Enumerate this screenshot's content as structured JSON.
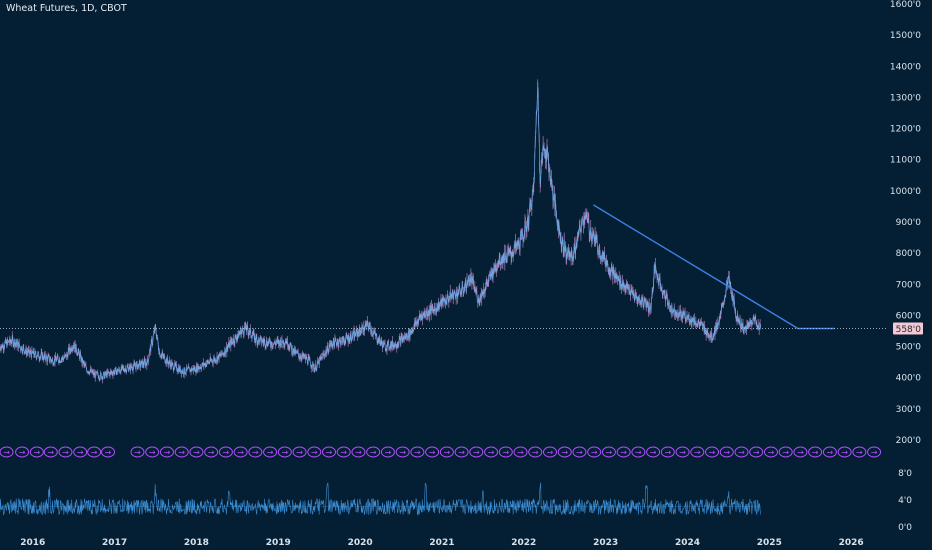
{
  "header": {
    "title": "Wheat Futures, 1D, CBOT"
  },
  "colors": {
    "background": "#041f33",
    "candle": "#c58fc9",
    "price_line": "#6aa8e8",
    "trendline": "#3f7fe0",
    "axis_text": "#d9e2ea",
    "last_price_bg": "#f2c9d4",
    "last_price_text": "#2a2a2a",
    "marker": "#b34dff",
    "volume": "#3d8fd6"
  },
  "chart_data": {
    "type": "line",
    "title": "Wheat Futures, 1D, CBOT",
    "xlabel": "",
    "ylabel": "",
    "x_ticks": [
      "2016",
      "2017",
      "2018",
      "2019",
      "2020",
      "2021",
      "2022",
      "2023",
      "2024",
      "2025",
      "2026"
    ],
    "xlim": [
      2015.6,
      2026.45
    ],
    "price_ticks": [
      "200'0",
      "300'0",
      "400'0",
      "500'0",
      "600'0",
      "700'0",
      "800'0",
      "900'0",
      "1000'0",
      "1100'0",
      "1200'0",
      "1300'0",
      "1400'0",
      "1500'0",
      "1600'0"
    ],
    "price_tick_values": [
      200,
      300,
      400,
      500,
      600,
      700,
      800,
      900,
      1000,
      1100,
      1200,
      1300,
      1400,
      1500,
      1600
    ],
    "price_ylim": [
      140,
      1600
    ],
    "volume_ticks": [
      "0'0",
      "4'0",
      "8'0"
    ],
    "volume_tick_values": [
      0,
      4,
      8
    ],
    "volume_ylim": [
      0,
      10
    ],
    "last_price": 558,
    "last_price_label": "558'0",
    "grid": false,
    "series": [
      {
        "x": [
          2015.6,
          2015.75,
          2015.95,
          2016.1,
          2016.25,
          2016.4,
          2016.5,
          2016.65,
          2016.75,
          2016.85,
          2017.0,
          2017.15,
          2017.3,
          2017.4,
          2017.5,
          2017.55,
          2017.62,
          2017.7,
          2017.85,
          2018.0,
          2018.15,
          2018.3,
          2018.45,
          2018.6,
          2018.75,
          2018.95,
          2019.1,
          2019.2,
          2019.35,
          2019.45,
          2019.55,
          2019.65,
          2019.8,
          2019.95,
          2020.1,
          2020.2,
          2020.3,
          2020.45,
          2020.6,
          2020.75,
          2020.9,
          2021.0,
          2021.1,
          2021.25,
          2021.35,
          2021.45,
          2021.55,
          2021.7,
          2021.85,
          2021.95,
          2022.05,
          2022.12,
          2022.17,
          2022.2,
          2022.25,
          2022.3,
          2022.35,
          2022.45,
          2022.52,
          2022.6,
          2022.75,
          2022.8,
          2022.95,
          2023.1,
          2023.25,
          2023.4,
          2023.5,
          2023.55,
          2023.6,
          2023.7,
          2023.8,
          2023.95,
          2024.1,
          2024.2,
          2024.3,
          2024.4,
          2024.5,
          2024.6,
          2024.7,
          2024.8,
          2024.9
        ],
        "values": [
          500,
          520,
          480,
          470,
          455,
          465,
          510,
          430,
          410,
          405,
          420,
          430,
          440,
          450,
          560,
          480,
          460,
          440,
          420,
          430,
          450,
          470,
          520,
          560,
          520,
          510,
          520,
          480,
          460,
          430,
          470,
          510,
          520,
          540,
          570,
          530,
          500,
          510,
          540,
          600,
          620,
          640,
          660,
          680,
          720,
          650,
          700,
          780,
          800,
          830,
          900,
          1000,
          1350,
          1050,
          1150,
          1100,
          1000,
          850,
          800,
          790,
          930,
          880,
          800,
          730,
          690,
          650,
          640,
          620,
          750,
          680,
          620,
          600,
          580,
          560,
          530,
          590,
          720,
          600,
          550,
          590,
          560
        ]
      }
    ],
    "trendline": {
      "x": [
        2022.85,
        2025.35,
        2025.8
      ],
      "values": [
        955,
        558,
        558
      ]
    },
    "volume": {
      "baseline": 3,
      "spikes": [
        2016.2,
        2017.5,
        2018.4,
        2019.6,
        2020.8,
        2021.5,
        2022.2,
        2023.5,
        2024.5
      ]
    },
    "event_markers": {
      "label": "→",
      "x": [
        2015.68,
        2015.87,
        2016.05,
        2016.22,
        2016.4,
        2016.58,
        2016.75,
        2016.92,
        2017.28,
        2017.46,
        2017.64,
        2017.82,
        2018.0,
        2018.18,
        2018.36,
        2018.54,
        2018.72,
        2018.9,
        2019.08,
        2019.26,
        2019.44,
        2019.62,
        2019.8,
        2019.98,
        2020.16,
        2020.34,
        2020.52,
        2020.7,
        2020.88,
        2021.06,
        2021.24,
        2021.42,
        2021.6,
        2021.78,
        2021.96,
        2022.14,
        2022.32,
        2022.5,
        2022.68,
        2022.86,
        2023.04,
        2023.22,
        2023.4,
        2023.58,
        2023.76,
        2023.94,
        2024.12,
        2024.3,
        2024.48,
        2024.66,
        2024.84,
        2025.02,
        2025.2,
        2025.38,
        2025.56,
        2025.74,
        2025.92,
        2026.1,
        2026.28
      ]
    }
  }
}
